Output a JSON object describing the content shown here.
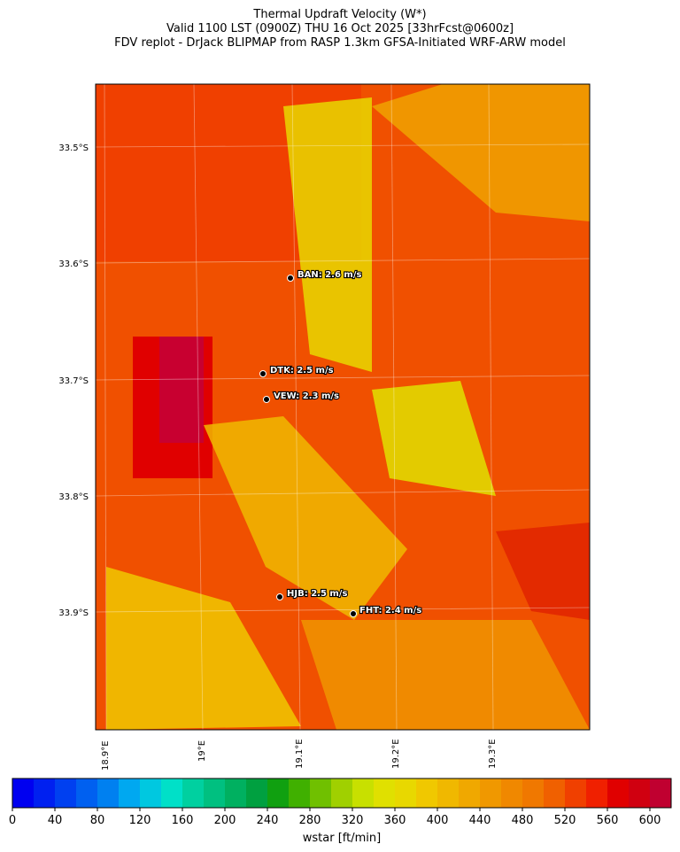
{
  "title": [
    "Thermal Updraft Velocity (W*)",
    "Valid 1100 LST (0900Z) THU 16 Oct 2025 [33hrFcst@0600z]",
    "FDV replot - DrJack BLIPMAP from RASP 1.3km GFSA-Initiated WRF-ARW model"
  ],
  "stations": [
    "BAN: 2.6 m/s",
    "DTK: 2.5 m/s",
    "VEW: 2.3 m/s",
    "HJB: 2.5 m/s",
    "FHT: 2.4 m/s"
  ],
  "lat_labels": [
    "33.5°S",
    "33.6°S",
    "33.7°S",
    "33.8°S",
    "33.9°S"
  ],
  "lon_labels": [
    "18.9°E",
    "19°E",
    "19.1°E",
    "19.2°E",
    "19.3°E"
  ],
  "colorbar": {
    "label": "wstar [ft/min]",
    "range": [
      0,
      620
    ],
    "ticks": [
      0,
      40,
      80,
      120,
      160,
      200,
      240,
      280,
      320,
      360,
      400,
      440,
      480,
      520,
      560,
      600
    ],
    "colors": [
      "#0000f0",
      "#0020f0",
      "#0040f0",
      "#0060f0",
      "#0080f0",
      "#00a8f0",
      "#00c8e0",
      "#00e0c8",
      "#00d0a0",
      "#00c080",
      "#00b060",
      "#00a040",
      "#10a010",
      "#40b000",
      "#70c000",
      "#a0d000",
      "#c8e000",
      "#e0e000",
      "#e8d800",
      "#f0c800",
      "#f0b800",
      "#f0a800",
      "#f09800",
      "#f08800",
      "#f07800",
      "#f06000",
      "#f04000",
      "#f02000",
      "#e00000",
      "#d00010",
      "#c00030"
    ]
  }
}
